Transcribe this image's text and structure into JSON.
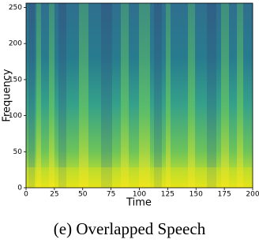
{
  "chart_data": {
    "type": "heatmap",
    "x_label": "Time",
    "y_label": "Frequency",
    "xlim": [
      0,
      200
    ],
    "ylim": [
      0,
      256
    ],
    "xticks": [
      0,
      25,
      50,
      75,
      100,
      125,
      150,
      175,
      200
    ],
    "yticks": [
      0,
      50,
      100,
      150,
      200,
      250
    ]
  },
  "caption": "(e) Overlapped Speech"
}
